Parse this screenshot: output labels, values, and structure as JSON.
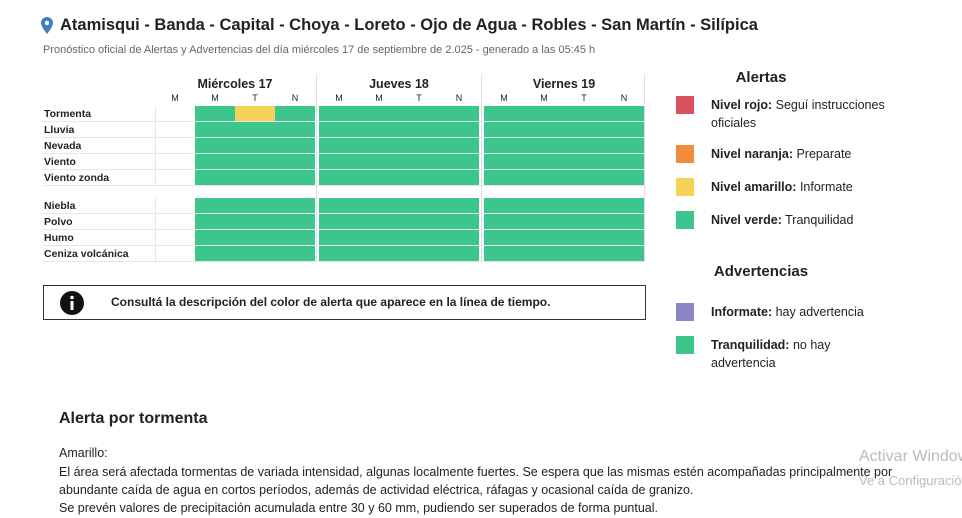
{
  "header": {
    "title": "Atamisqui - Banda - Capital - Choya - Loreto - Ojo de Agua - Robles - San Martín - Silípica",
    "subtitle": "Pronóstico oficial de Alertas y Advertencias del día miércoles 17 de septiembre de 2.025 - generado a las 05:45 h"
  },
  "table": {
    "days": [
      {
        "name": "Miércoles 17",
        "periods": [
          "M",
          "M",
          "T",
          "N"
        ]
      },
      {
        "name": "Jueves 18",
        "periods": [
          "M",
          "M",
          "T",
          "N"
        ]
      },
      {
        "name": "Viernes 19",
        "periods": [
          "M",
          "M",
          "T",
          "N"
        ]
      }
    ],
    "groups": [
      [
        {
          "label": "Tormenta",
          "cells": [
            null,
            "#3cc68e",
            "#f6d258",
            "#3cc68e",
            "#3cc68e",
            "#3cc68e",
            "#3cc68e",
            "#3cc68e",
            "#3cc68e",
            "#3cc68e",
            "#3cc68e",
            "#3cc68e"
          ]
        },
        {
          "label": "Lluvia",
          "cells": [
            null,
            "#3cc68e",
            "#3cc68e",
            "#3cc68e",
            "#3cc68e",
            "#3cc68e",
            "#3cc68e",
            "#3cc68e",
            "#3cc68e",
            "#3cc68e",
            "#3cc68e",
            "#3cc68e"
          ]
        },
        {
          "label": "Nevada",
          "cells": [
            null,
            "#3cc68e",
            "#3cc68e",
            "#3cc68e",
            "#3cc68e",
            "#3cc68e",
            "#3cc68e",
            "#3cc68e",
            "#3cc68e",
            "#3cc68e",
            "#3cc68e",
            "#3cc68e"
          ]
        },
        {
          "label": "Viento",
          "cells": [
            null,
            "#3cc68e",
            "#3cc68e",
            "#3cc68e",
            "#3cc68e",
            "#3cc68e",
            "#3cc68e",
            "#3cc68e",
            "#3cc68e",
            "#3cc68e",
            "#3cc68e",
            "#3cc68e"
          ]
        },
        {
          "label": "Viento zonda",
          "cells": [
            null,
            "#3cc68e",
            "#3cc68e",
            "#3cc68e",
            "#3cc68e",
            "#3cc68e",
            "#3cc68e",
            "#3cc68e",
            "#3cc68e",
            "#3cc68e",
            "#3cc68e",
            "#3cc68e"
          ]
        }
      ],
      [
        {
          "label": "Niebla",
          "cells": [
            null,
            "#3cc68e",
            "#3cc68e",
            "#3cc68e",
            "#3cc68e",
            "#3cc68e",
            "#3cc68e",
            "#3cc68e",
            "#3cc68e",
            "#3cc68e",
            "#3cc68e",
            "#3cc68e"
          ]
        },
        {
          "label": "Polvo",
          "cells": [
            null,
            "#3cc68e",
            "#3cc68e",
            "#3cc68e",
            "#3cc68e",
            "#3cc68e",
            "#3cc68e",
            "#3cc68e",
            "#3cc68e",
            "#3cc68e",
            "#3cc68e",
            "#3cc68e"
          ]
        },
        {
          "label": "Humo",
          "cells": [
            null,
            "#3cc68e",
            "#3cc68e",
            "#3cc68e",
            "#3cc68e",
            "#3cc68e",
            "#3cc68e",
            "#3cc68e",
            "#3cc68e",
            "#3cc68e",
            "#3cc68e",
            "#3cc68e"
          ]
        },
        {
          "label": "Ceniza volcánica",
          "cells": [
            null,
            "#3cc68e",
            "#3cc68e",
            "#3cc68e",
            "#3cc68e",
            "#3cc68e",
            "#3cc68e",
            "#3cc68e",
            "#3cc68e",
            "#3cc68e",
            "#3cc68e",
            "#3cc68e"
          ]
        }
      ]
    ]
  },
  "notice": "Consultá la descripción del color de alerta que aparece en la línea de tiempo.",
  "legend": {
    "alertas": {
      "title": "Alertas",
      "items": [
        {
          "label": "Nivel rojo:",
          "text": "Seguí instrucciones oficiales",
          "color": "#d9505e"
        },
        {
          "label": "Nivel naranja:",
          "text": "Preparate",
          "color": "#f28c3b"
        },
        {
          "label": "Nivel amarillo:",
          "text": "Informate",
          "color": "#f6d258"
        },
        {
          "label": "Nivel verde:",
          "text": "Tranquilidad",
          "color": "#3cc68e"
        }
      ]
    },
    "advertencias": {
      "title": "Advertencias",
      "items": [
        {
          "label": "Informate:",
          "text": "hay advertencia",
          "color": "#8a86c4"
        },
        {
          "label": "Tranquilidad:",
          "text": "no hay advertencia",
          "color": "#3cc68e"
        }
      ]
    }
  },
  "detail": {
    "title": "Alerta por tormenta",
    "level": "Amarillo:",
    "paragraphs": [
      "El área será afectada tormentas de variada intensidad, algunas localmente fuertes. Se espera que las mismas estén acompañadas principalmente por abundante caída de agua en cortos períodos, además de actividad eléctrica, ráfagas y ocasional caída de granizo.",
      "Se prevén valores de precipitación acumulada entre 30 y 60 mm, pudiendo ser superados de forma puntual."
    ]
  },
  "watermark": {
    "title": "Activar Windows",
    "text": "Ve a Configuración"
  }
}
